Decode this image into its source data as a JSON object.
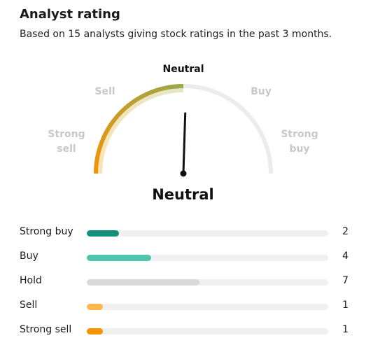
{
  "header": {
    "title": "Analyst rating",
    "subtitle": "Based on 15 analysts giving stock ratings in the past 3 months."
  },
  "gauge": {
    "labels": {
      "strong_sell_1": "Strong",
      "strong_sell_2": "sell",
      "sell": "Sell",
      "neutral": "Neutral",
      "buy": "Buy",
      "strong_buy_1": "Strong",
      "strong_buy_2": "buy"
    },
    "result": "Neutral",
    "active_segment": "neutral",
    "needle_position": 0.51,
    "colors": {
      "track": "#ececec",
      "highlight_start": "#f0940a",
      "highlight_end": "#9ca64a",
      "inner_start": "#fde3b3",
      "inner_end": "#e4e6c6",
      "needle": "#111111"
    }
  },
  "ratings": [
    {
      "label": "Strong buy",
      "count": "2",
      "value": 2,
      "color": "#13917c"
    },
    {
      "label": "Buy",
      "count": "4",
      "value": 4,
      "color": "#4ec4ad"
    },
    {
      "label": "Hold",
      "count": "7",
      "value": 7,
      "color": "#d9d9d9"
    },
    {
      "label": "Sell",
      "count": "1",
      "value": 1,
      "color": "#ffb74d"
    },
    {
      "label": "Strong sell",
      "count": "1",
      "value": 1,
      "color": "#f59300"
    }
  ],
  "max_value": 15
}
